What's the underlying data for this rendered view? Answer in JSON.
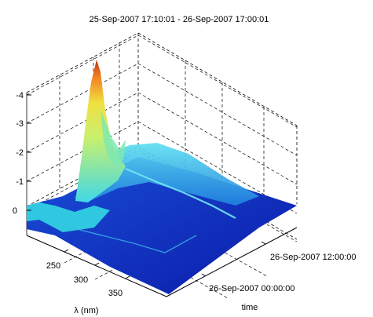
{
  "chart_data": {
    "type": "surface",
    "title": "25-Sep-2007 17:10:01 - 26-Sep-2007 17:00:01",
    "xlabel": "λ (nm)",
    "ylabel": "time",
    "zlabel": "",
    "x_ticks": [
      "250",
      "300",
      "350"
    ],
    "y_ticks": [
      "26-Sep-2007 00:00:00",
      "26-Sep-2007 12:00:00"
    ],
    "z_ticks": [
      "0",
      "-1",
      "-2",
      "-3",
      "-4"
    ],
    "xlim": [
      225,
      375
    ],
    "ylim": [
      "25-Sep-2007 17:10:01",
      "26-Sep-2007 17:00:01"
    ],
    "zlim": [
      0,
      -4.7
    ],
    "grid": true,
    "colormap": "jet",
    "colors": {
      "low": "#0000b0",
      "mid": "#2fd0e0",
      "high": "#c04000"
    },
    "peak": {
      "x": 258,
      "z": -4.6
    }
  }
}
